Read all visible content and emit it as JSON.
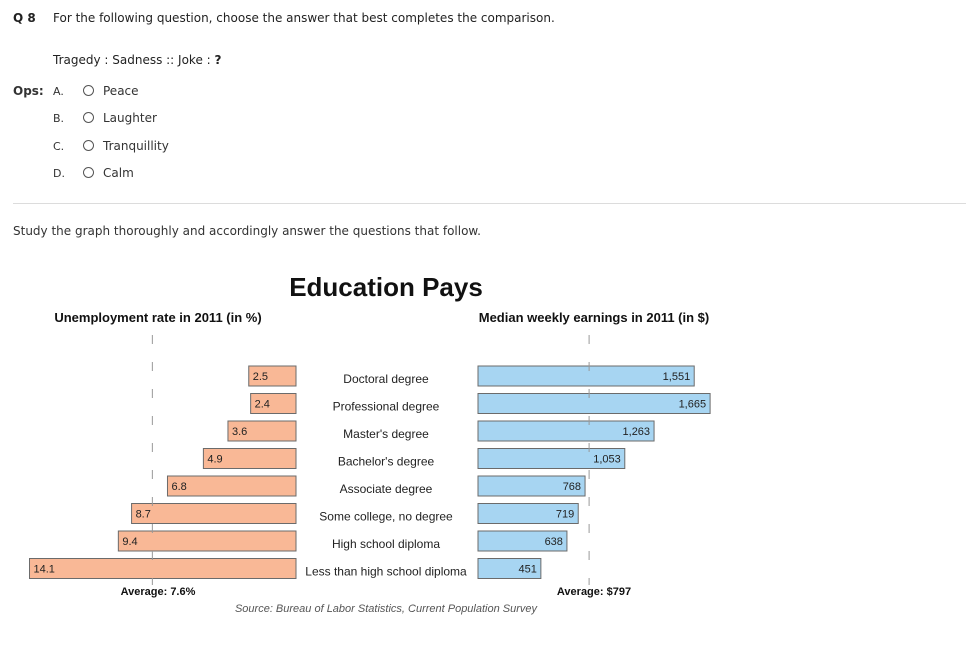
{
  "question": {
    "number": "Q 8",
    "prompt": "For the following question, choose the answer that best completes the comparison.",
    "analogy_left": "Tragedy : Sadness :: Joke : ",
    "analogy_blank": "?",
    "ops_label": "Ops:",
    "options": [
      {
        "letter": "A.",
        "label": "Peace"
      },
      {
        "letter": "B.",
        "label": "Laughter"
      },
      {
        "letter": "C.",
        "label": "Tranquillity"
      },
      {
        "letter": "D.",
        "label": "Calm"
      }
    ]
  },
  "instruction": "Study the graph thoroughly and accordingly answer the questions that follow.",
  "chart_data": {
    "type": "bar",
    "title": "Education Pays",
    "source": "Source: Bureau of Labor Statistics, Current Population Survey",
    "categories": [
      "Doctoral degree",
      "Professional degree",
      "Master's degree",
      "Bachelor's degree",
      "Associate degree",
      "Some college, no degree",
      "High school diploma",
      "Less than high school diploma"
    ],
    "series": [
      {
        "name": "Unemployment rate in 2011 (in %)",
        "values": [
          2.5,
          2.4,
          3.6,
          4.9,
          6.8,
          8.7,
          9.4,
          14.1
        ],
        "labels": [
          "2.5",
          "2.4",
          "3.6",
          "4.9",
          "6.8",
          "8.7",
          "9.4",
          "14.1"
        ],
        "average": 7.6,
        "average_label": "Average: 7.6%",
        "color": "#f9b896",
        "direction": "left"
      },
      {
        "name": "Median weekly earnings in 2011 (in $)",
        "values": [
          1551,
          1665,
          1263,
          1053,
          768,
          719,
          638,
          451
        ],
        "labels": [
          "1,551",
          "1,665",
          "1,263",
          "1,053",
          "768",
          "719",
          "638",
          "451"
        ],
        "average": 797,
        "average_label": "Average: $797",
        "color": "#a7d5f2",
        "direction": "right"
      }
    ]
  }
}
